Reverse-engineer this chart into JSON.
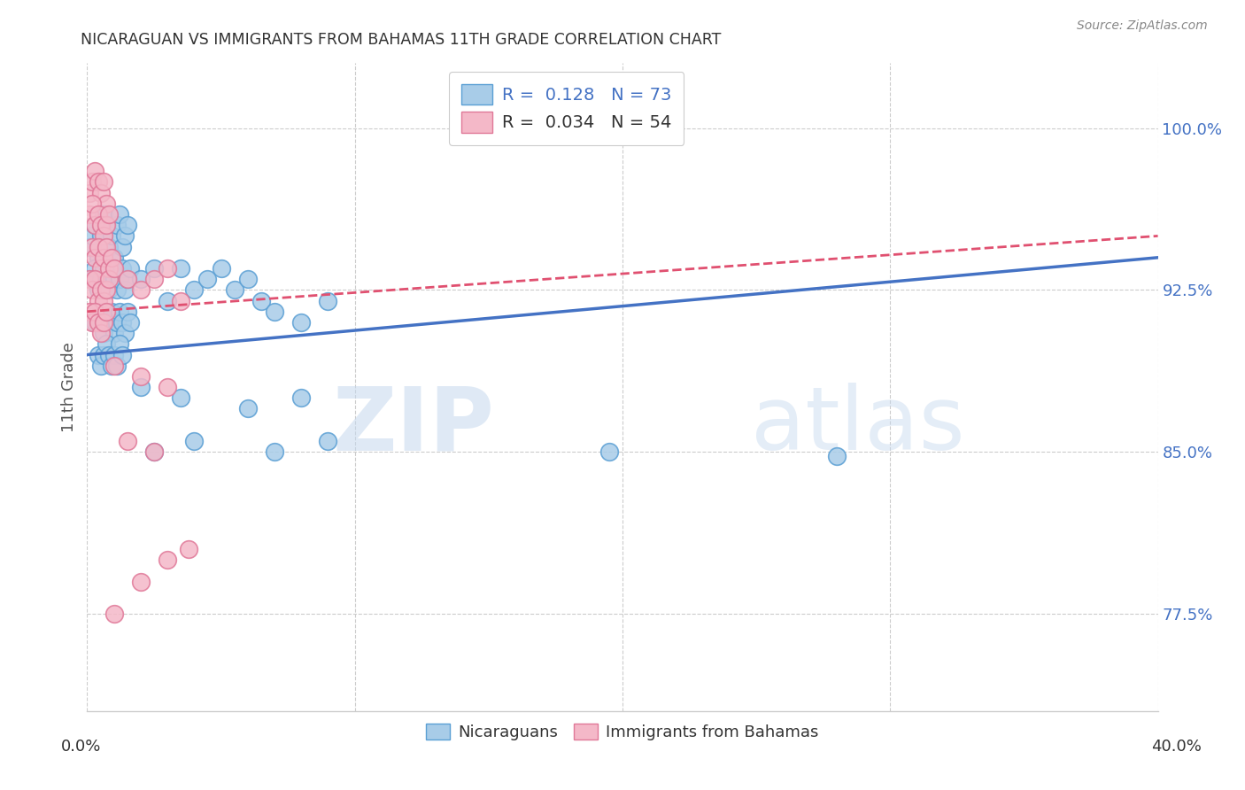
{
  "title": "NICARAGUAN VS IMMIGRANTS FROM BAHAMAS 11TH GRADE CORRELATION CHART",
  "source": "Source: ZipAtlas.com",
  "ylabel": "11th Grade",
  "y_ticks": [
    77.5,
    85.0,
    92.5,
    100.0
  ],
  "x_min": 0.0,
  "x_max": 0.4,
  "y_min": 73.0,
  "y_max": 103.0,
  "blue_color": "#a8cce8",
  "blue_edge_color": "#5a9fd4",
  "pink_color": "#f4b8c8",
  "pink_edge_color": "#e07898",
  "trendline_blue_color": "#4472c4",
  "trendline_pink_color": "#e05070",
  "blue_scatter": [
    [
      0.001,
      94.5
    ],
    [
      0.002,
      95.0
    ],
    [
      0.003,
      95.5
    ],
    [
      0.004,
      94.0
    ],
    [
      0.005,
      95.0
    ],
    [
      0.006,
      96.0
    ],
    [
      0.007,
      95.5
    ],
    [
      0.008,
      94.5
    ],
    [
      0.009,
      95.0
    ],
    [
      0.01,
      94.0
    ],
    [
      0.011,
      95.5
    ],
    [
      0.012,
      96.0
    ],
    [
      0.013,
      94.5
    ],
    [
      0.014,
      95.0
    ],
    [
      0.015,
      95.5
    ],
    [
      0.002,
      93.0
    ],
    [
      0.003,
      93.5
    ],
    [
      0.004,
      92.5
    ],
    [
      0.005,
      93.0
    ],
    [
      0.006,
      93.5
    ],
    [
      0.007,
      93.0
    ],
    [
      0.008,
      92.5
    ],
    [
      0.009,
      93.5
    ],
    [
      0.01,
      93.0
    ],
    [
      0.011,
      92.5
    ],
    [
      0.012,
      93.0
    ],
    [
      0.013,
      93.5
    ],
    [
      0.014,
      92.5
    ],
    [
      0.015,
      93.0
    ],
    [
      0.016,
      93.5
    ],
    [
      0.003,
      91.0
    ],
    [
      0.004,
      91.5
    ],
    [
      0.005,
      91.0
    ],
    [
      0.006,
      90.5
    ],
    [
      0.007,
      91.5
    ],
    [
      0.008,
      91.0
    ],
    [
      0.009,
      91.5
    ],
    [
      0.01,
      90.5
    ],
    [
      0.011,
      91.0
    ],
    [
      0.012,
      91.5
    ],
    [
      0.013,
      91.0
    ],
    [
      0.014,
      90.5
    ],
    [
      0.015,
      91.5
    ],
    [
      0.016,
      91.0
    ],
    [
      0.004,
      89.5
    ],
    [
      0.005,
      89.0
    ],
    [
      0.006,
      89.5
    ],
    [
      0.007,
      90.0
    ],
    [
      0.008,
      89.5
    ],
    [
      0.009,
      89.0
    ],
    [
      0.01,
      89.5
    ],
    [
      0.011,
      89.0
    ],
    [
      0.012,
      90.0
    ],
    [
      0.013,
      89.5
    ],
    [
      0.02,
      93.0
    ],
    [
      0.025,
      93.5
    ],
    [
      0.03,
      92.0
    ],
    [
      0.035,
      93.5
    ],
    [
      0.04,
      92.5
    ],
    [
      0.045,
      93.0
    ],
    [
      0.05,
      93.5
    ],
    [
      0.055,
      92.5
    ],
    [
      0.06,
      93.0
    ],
    [
      0.065,
      92.0
    ],
    [
      0.07,
      91.5
    ],
    [
      0.08,
      91.0
    ],
    [
      0.09,
      92.0
    ],
    [
      0.02,
      88.0
    ],
    [
      0.035,
      87.5
    ],
    [
      0.06,
      87.0
    ],
    [
      0.08,
      87.5
    ],
    [
      0.025,
      85.0
    ],
    [
      0.04,
      85.5
    ],
    [
      0.07,
      85.0
    ],
    [
      0.09,
      85.5
    ],
    [
      0.195,
      85.0
    ],
    [
      0.28,
      84.8
    ]
  ],
  "pink_scatter": [
    [
      0.001,
      97.0
    ],
    [
      0.002,
      97.5
    ],
    [
      0.003,
      98.0
    ],
    [
      0.004,
      97.5
    ],
    [
      0.005,
      97.0
    ],
    [
      0.006,
      97.5
    ],
    [
      0.007,
      96.5
    ],
    [
      0.001,
      96.0
    ],
    [
      0.002,
      96.5
    ],
    [
      0.003,
      95.5
    ],
    [
      0.004,
      96.0
    ],
    [
      0.005,
      95.5
    ],
    [
      0.006,
      95.0
    ],
    [
      0.007,
      95.5
    ],
    [
      0.008,
      96.0
    ],
    [
      0.002,
      94.5
    ],
    [
      0.003,
      94.0
    ],
    [
      0.004,
      94.5
    ],
    [
      0.005,
      93.5
    ],
    [
      0.006,
      94.0
    ],
    [
      0.007,
      94.5
    ],
    [
      0.008,
      93.5
    ],
    [
      0.009,
      94.0
    ],
    [
      0.001,
      93.0
    ],
    [
      0.002,
      92.5
    ],
    [
      0.003,
      93.0
    ],
    [
      0.004,
      92.0
    ],
    [
      0.005,
      92.5
    ],
    [
      0.006,
      92.0
    ],
    [
      0.007,
      92.5
    ],
    [
      0.008,
      93.0
    ],
    [
      0.001,
      91.5
    ],
    [
      0.002,
      91.0
    ],
    [
      0.003,
      91.5
    ],
    [
      0.004,
      91.0
    ],
    [
      0.005,
      90.5
    ],
    [
      0.006,
      91.0
    ],
    [
      0.007,
      91.5
    ],
    [
      0.01,
      93.5
    ],
    [
      0.015,
      93.0
    ],
    [
      0.02,
      92.5
    ],
    [
      0.025,
      93.0
    ],
    [
      0.03,
      93.5
    ],
    [
      0.035,
      92.0
    ],
    [
      0.01,
      89.0
    ],
    [
      0.02,
      88.5
    ],
    [
      0.03,
      88.0
    ],
    [
      0.015,
      85.5
    ],
    [
      0.025,
      85.0
    ],
    [
      0.01,
      77.5
    ],
    [
      0.02,
      79.0
    ],
    [
      0.03,
      80.0
    ],
    [
      0.038,
      80.5
    ]
  ],
  "blue_trend_x": [
    0.0,
    0.4
  ],
  "blue_trend_y": [
    89.5,
    94.0
  ],
  "pink_trend_x": [
    0.0,
    0.4
  ],
  "pink_trend_y": [
    91.5,
    95.0
  ],
  "watermark_zip": "ZIP",
  "watermark_atlas": "atlas",
  "background_color": "#ffffff"
}
